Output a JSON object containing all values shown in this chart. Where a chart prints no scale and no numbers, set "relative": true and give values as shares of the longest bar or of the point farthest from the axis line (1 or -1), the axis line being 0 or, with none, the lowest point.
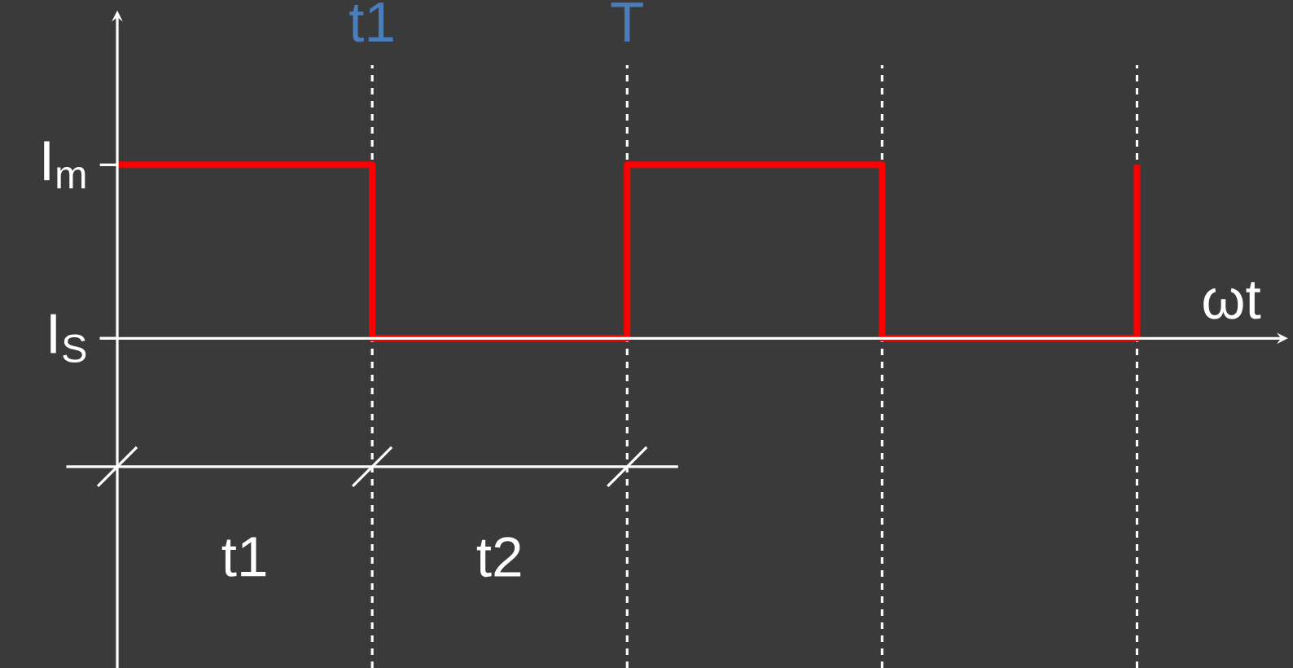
{
  "chart_data": {
    "type": "step",
    "relative": true,
    "xlabel": "ωt",
    "categories": [
      null,
      null,
      null,
      null,
      null
    ],
    "series": [
      {
        "color": "#ff0000",
        "values": [
          1,
          0,
          1,
          0,
          1
        ]
      }
    ],
    "annotations": [
      "t1",
      "T",
      "I$_{m}$",
      "I$_{S}$",
      "t1",
      "t2"
    ],
    "grid": "x",
    "marker": "none",
    "line_style": "solid"
  }
}
